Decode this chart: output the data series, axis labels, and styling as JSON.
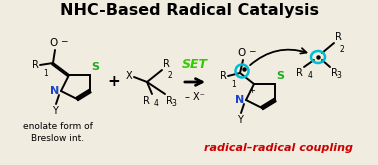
{
  "title": "NHC-Based Radical Catalysis",
  "title_fontsize": 11.5,
  "title_fontweight": "bold",
  "bg_color": "#f0ece0",
  "subtitle_left": "enolate form of\nBreslow int.",
  "subtitle_right": "radical–radical coupling",
  "subtitle_right_color": "#cc0000",
  "set_text": "SET",
  "set_color": "#33cc00",
  "minus_x": "– X⁻",
  "arrow_color": "#000000",
  "N_color": "#1a44cc",
  "S_color": "#22aa22",
  "cyan_color": "#00bcd4",
  "radical_dot_color": "#000000",
  "lw": 1.4,
  "fs": 7.0
}
